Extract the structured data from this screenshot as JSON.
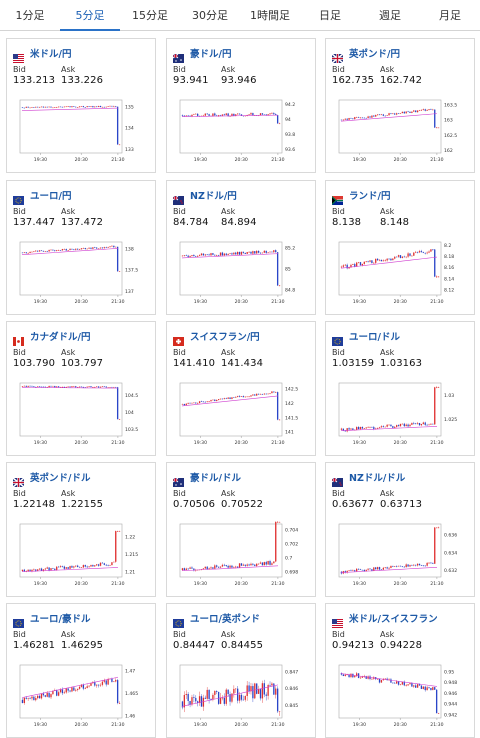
{
  "tabs": [
    {
      "label": "1分足",
      "active": false
    },
    {
      "label": "5分足",
      "active": true
    },
    {
      "label": "15分足",
      "active": false
    },
    {
      "label": "30分足",
      "active": false
    },
    {
      "label": "1時間足",
      "active": false
    },
    {
      "label": "日足",
      "active": false
    },
    {
      "label": "週足",
      "active": false
    },
    {
      "label": "月足",
      "active": false
    }
  ],
  "labels": {
    "bid": "Bid",
    "ask": "Ask"
  },
  "x_ticks": [
    "19:30",
    "20:30",
    "21:30"
  ],
  "colors": {
    "up": "#e03030",
    "down": "#2a45c8",
    "ma": "#d040d0",
    "pair": "#1d59a6",
    "tab_active": "#2a72c8"
  },
  "cards": [
    {
      "pair": "米ドル/円",
      "flag": "us-flag",
      "bid": "133.213",
      "ask": "133.226",
      "chart_data": {
        "type": "candlestick",
        "y_ticks": [
          "135",
          "134",
          "133"
        ],
        "ylim": [
          132.8,
          135.3
        ],
        "start": 134.95,
        "end": 133.2,
        "plateau_drift": 0.05,
        "drop_at": 0.965,
        "ma_from": 134.8,
        "ma_to": 134.92,
        "noise": 0.03
      }
    },
    {
      "pair": "豪ドル/円",
      "flag": "au-flag",
      "bid": "93.941",
      "ask": "93.946",
      "chart_data": {
        "type": "candlestick",
        "y_ticks": [
          "94.2",
          "94",
          "93.8",
          "93.6"
        ],
        "ylim": [
          93.55,
          94.25
        ],
        "start": 94.05,
        "end": 93.94,
        "plateau_drift": 0.01,
        "drop_at": 0.97,
        "ma_from": 94.03,
        "ma_to": 94.05,
        "noise": 0.02
      }
    },
    {
      "pair": "英ポンド/円",
      "flag": "gb-flag",
      "bid": "162.735",
      "ask": "162.742",
      "chart_data": {
        "type": "candlestick",
        "y_ticks": [
          "163.5",
          "163",
          "162.5",
          "162"
        ],
        "ylim": [
          161.9,
          163.65
        ],
        "start": 163.0,
        "end": 162.74,
        "plateau_drift": 0.35,
        "drop_at": 0.96,
        "ma_from": 162.95,
        "ma_to": 163.2,
        "noise": 0.04
      }
    },
    {
      "pair": "ユーロ/円",
      "flag": "eu-flag",
      "bid": "137.447",
      "ask": "137.472",
      "chart_data": {
        "type": "candlestick",
        "y_ticks": [
          "138",
          "137.5",
          "137"
        ],
        "ylim": [
          136.9,
          138.15
        ],
        "start": 137.9,
        "end": 137.46,
        "plateau_drift": 0.15,
        "drop_at": 0.965,
        "ma_from": 137.85,
        "ma_to": 138.0,
        "noise": 0.025
      }
    },
    {
      "pair": "NZドル/円",
      "flag": "nz-flag",
      "bid": "84.784",
      "ask": "84.894",
      "chart_data": {
        "type": "candlestick",
        "y_ticks": [
          "85.2",
          "85",
          "84.8"
        ],
        "ylim": [
          84.75,
          85.25
        ],
        "start": 85.12,
        "end": 84.84,
        "plateau_drift": 0.04,
        "drop_at": 0.965,
        "ma_from": 85.1,
        "ma_to": 85.14,
        "noise": 0.015
      }
    },
    {
      "pair": "ランド/円",
      "flag": "za-flag",
      "bid": "8.138",
      "ask": "8.148",
      "chart_data": {
        "type": "candlestick",
        "y_ticks": [
          "8.2",
          "8.18",
          "8.16",
          "8.14",
          "8.12"
        ],
        "ylim": [
          8.11,
          8.205
        ],
        "start": 8.16,
        "end": 8.143,
        "plateau_drift": 0.03,
        "drop_at": 0.955,
        "ma_from": 8.158,
        "ma_to": 8.178,
        "noise": 0.004
      }
    },
    {
      "pair": "カナダドル/円",
      "flag": "ca-flag",
      "bid": "103.790",
      "ask": "103.797",
      "chart_data": {
        "type": "candlestick",
        "y_ticks": [
          "104.5",
          "104",
          "103.5"
        ],
        "ylim": [
          103.3,
          104.85
        ],
        "start": 104.75,
        "end": 103.79,
        "plateau_drift": -0.02,
        "drop_at": 0.965,
        "ma_from": 104.72,
        "ma_to": 104.7,
        "noise": 0.02
      }
    },
    {
      "pair": "スイスフラン/円",
      "flag": "ch-flag",
      "bid": "141.410",
      "ask": "141.434",
      "chart_data": {
        "type": "candlestick",
        "y_ticks": [
          "142.5",
          "142",
          "141.5",
          "141"
        ],
        "ylim": [
          140.85,
          142.7
        ],
        "start": 141.95,
        "end": 141.42,
        "plateau_drift": 0.45,
        "drop_at": 0.965,
        "ma_from": 141.9,
        "ma_to": 142.25,
        "noise": 0.04
      }
    },
    {
      "pair": "ユーロ/ドル",
      "flag": "eu-flag",
      "bid": "1.03159",
      "ask": "1.03163",
      "chart_data": {
        "type": "candlestick",
        "y_ticks": [
          "1.03",
          "1.025"
        ],
        "ylim": [
          1.0215,
          1.0325
        ],
        "start": 1.0228,
        "end": 1.0316,
        "plateau_drift": 0.0014,
        "drop_at": 0.955,
        "ma_from": 1.0226,
        "ma_to": 1.0235,
        "noise": 0.0004
      }
    },
    {
      "pair": "英ポンド/ドル",
      "flag": "gb-flag",
      "bid": "1.22148",
      "ask": "1.22155",
      "chart_data": {
        "type": "candlestick",
        "y_ticks": [
          "1.22",
          "1.215",
          "1.21"
        ],
        "ylim": [
          1.2085,
          1.2235
        ],
        "start": 1.2102,
        "end": 1.2215,
        "plateau_drift": 0.0022,
        "drop_at": 0.955,
        "ma_from": 1.21,
        "ma_to": 1.2112,
        "noise": 0.0005
      }
    },
    {
      "pair": "豪ドル/ドル",
      "flag": "au-flag",
      "bid": "0.70506",
      "ask": "0.70522",
      "chart_data": {
        "type": "candlestick",
        "y_ticks": [
          "0.704",
          "0.702",
          "0.7",
          "0.698"
        ],
        "ylim": [
          0.6972,
          0.7048
        ],
        "start": 0.6982,
        "end": 0.7051,
        "plateau_drift": 0.0011,
        "drop_at": 0.955,
        "ma_from": 0.6981,
        "ma_to": 0.6988,
        "noise": 0.0003
      }
    },
    {
      "pair": "NZドル/ドル",
      "flag": "nz-flag",
      "bid": "0.63677",
      "ask": "0.63713",
      "chart_data": {
        "type": "candlestick",
        "y_ticks": [
          "0.636",
          "0.634",
          "0.632"
        ],
        "ylim": [
          0.6312,
          0.6372
        ],
        "start": 0.6318,
        "end": 0.6368,
        "plateau_drift": 0.0009,
        "drop_at": 0.955,
        "ma_from": 0.6317,
        "ma_to": 0.6323,
        "noise": 0.0002
      }
    },
    {
      "pair": "ユーロ/豪ドル",
      "flag": "eu-flag",
      "bid": "1.46281",
      "ask": "1.46295",
      "chart_data": {
        "type": "candlestick",
        "y_ticks": [
          "1.47",
          "1.465",
          "1.46"
        ],
        "ylim": [
          1.4595,
          1.4712
        ],
        "start": 1.4635,
        "end": 1.4628,
        "plateau_drift": 0.0045,
        "drop_at": 0.965,
        "ma_from": 1.464,
        "ma_to": 1.4685,
        "noise": 0.0008
      }
    },
    {
      "pair": "ユーロ/英ポンド",
      "flag": "eu-flag",
      "bid": "0.84447",
      "ask": "0.84455",
      "chart_data": {
        "type": "candlestick",
        "y_ticks": [
          "0.847",
          "0.846",
          "0.845"
        ],
        "ylim": [
          0.8442,
          0.8474
        ],
        "start": 0.8452,
        "end": 0.8446,
        "plateau_drift": 0.0008,
        "drop_at": 0.965,
        "ma_from": 0.8449,
        "ma_to": 0.8462,
        "noise": 0.0005
      }
    },
    {
      "pair": "米ドル/スイスフラン",
      "flag": "us-flag",
      "bid": "0.94213",
      "ask": "0.94228",
      "chart_data": {
        "type": "candlestick",
        "y_ticks": [
          "0.95",
          "0.948",
          "0.946",
          "0.944",
          "0.942"
        ],
        "ylim": [
          0.9413,
          0.9512
        ],
        "start": 0.9497,
        "end": 0.9422,
        "plateau_drift": -0.0032,
        "drop_at": 0.965,
        "ma_from": 0.9496,
        "ma_to": 0.9472,
        "noise": 0.0005
      }
    }
  ]
}
